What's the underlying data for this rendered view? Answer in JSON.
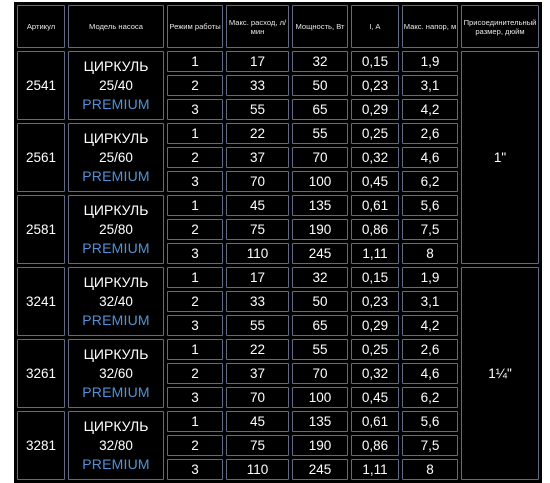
{
  "headers": {
    "article": "Артикул",
    "model": "Модель насоса",
    "mode": "Режим работы",
    "flow": "Макс. расход, л/мин",
    "power": "Мощность, Вт",
    "current": "I, A",
    "head": "Макс. напор, м",
    "connection": "Присоединительный размер, дюйм"
  },
  "rows": [
    {
      "article": "2541",
      "model_name": "ЦИРКУЛЬ",
      "model_size": "25/40",
      "model_tag": "PREMIUM",
      "modes": [
        {
          "mode": "1",
          "flow": "17",
          "power": "32",
          "current": "0,15",
          "head": "1,9"
        },
        {
          "mode": "2",
          "flow": "33",
          "power": "50",
          "current": "0,23",
          "head": "3,1"
        },
        {
          "mode": "3",
          "flow": "55",
          "power": "65",
          "current": "0,29",
          "head": "4,2"
        }
      ]
    },
    {
      "article": "2561",
      "model_name": "ЦИРКУЛЬ",
      "model_size": "25/60",
      "model_tag": "PREMIUM",
      "modes": [
        {
          "mode": "1",
          "flow": "22",
          "power": "55",
          "current": "0,25",
          "head": "2,6"
        },
        {
          "mode": "2",
          "flow": "37",
          "power": "70",
          "current": "0,32",
          "head": "4,6"
        },
        {
          "mode": "3",
          "flow": "70",
          "power": "100",
          "current": "0,45",
          "head": "6,2"
        }
      ]
    },
    {
      "article": "2581",
      "model_name": "ЦИРКУЛЬ",
      "model_size": "25/80",
      "model_tag": "PREMIUM",
      "modes": [
        {
          "mode": "1",
          "flow": "45",
          "power": "135",
          "current": "0,61",
          "head": "5,6"
        },
        {
          "mode": "2",
          "flow": "75",
          "power": "190",
          "current": "0,86",
          "head": "7,5"
        },
        {
          "mode": "3",
          "flow": "110",
          "power": "245",
          "current": "1,11",
          "head": "8"
        }
      ]
    },
    {
      "article": "3241",
      "model_name": "ЦИРКУЛЬ",
      "model_size": "32/40",
      "model_tag": "PREMIUM",
      "modes": [
        {
          "mode": "1",
          "flow": "17",
          "power": "32",
          "current": "0,15",
          "head": "1,9"
        },
        {
          "mode": "2",
          "flow": "33",
          "power": "50",
          "current": "0,23",
          "head": "3,1"
        },
        {
          "mode": "3",
          "flow": "55",
          "power": "65",
          "current": "0,29",
          "head": "4,2"
        }
      ]
    },
    {
      "article": "3261",
      "model_name": "ЦИРКУЛЬ",
      "model_size": "32/60",
      "model_tag": "PREMIUM",
      "modes": [
        {
          "mode": "1",
          "flow": "22",
          "power": "55",
          "current": "0,25",
          "head": "2,6"
        },
        {
          "mode": "2",
          "flow": "37",
          "power": "70",
          "current": "0,32",
          "head": "4,6"
        },
        {
          "mode": "3",
          "flow": "70",
          "power": "100",
          "current": "0,45",
          "head": "6,2"
        }
      ]
    },
    {
      "article": "3281",
      "model_name": "ЦИРКУЛЬ",
      "model_size": "32/80",
      "model_tag": "PREMIUM",
      "modes": [
        {
          "mode": "1",
          "flow": "45",
          "power": "135",
          "current": "0,61",
          "head": "5,6"
        },
        {
          "mode": "2",
          "flow": "75",
          "power": "190",
          "current": "0,86",
          "head": "7,5"
        },
        {
          "mode": "3",
          "flow": "110",
          "power": "245",
          "current": "1,11",
          "head": "8"
        }
      ]
    }
  ],
  "connection_groups": [
    {
      "value": "1\"",
      "row_span_models": 3
    },
    {
      "value": "1¼\"",
      "row_span_models": 3
    }
  ],
  "colors": {
    "background": "#000000",
    "cell_border": "#5f6b82",
    "text": "#ffffff",
    "premium_accent": "#4f93d8"
  }
}
